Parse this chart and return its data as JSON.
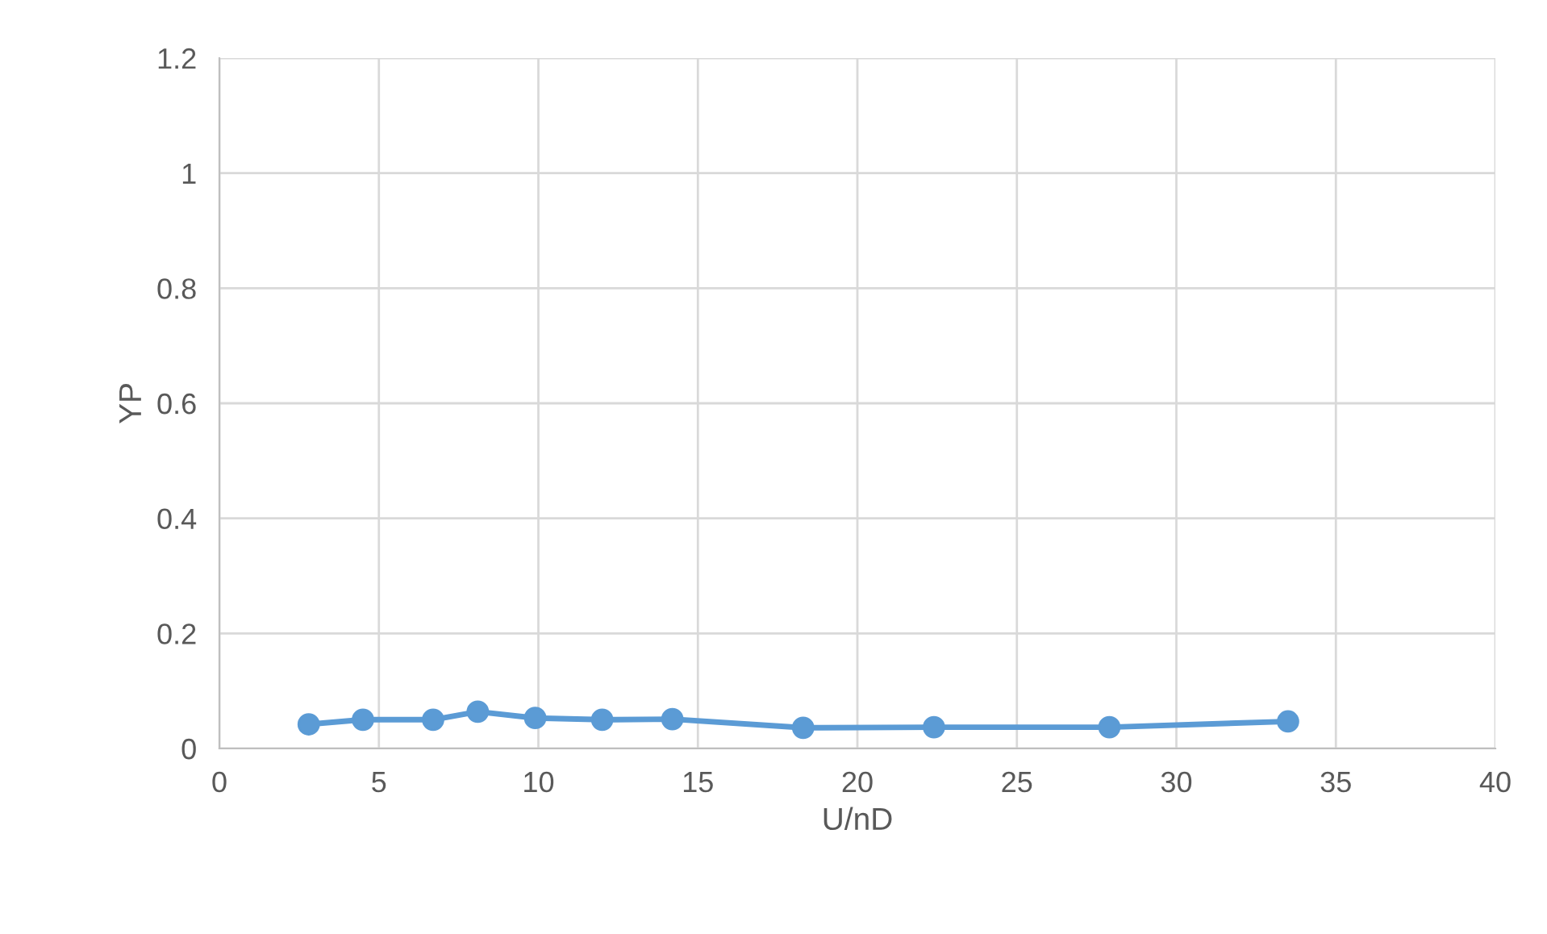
{
  "chart_data": {
    "type": "line",
    "xlabel": "U/nD",
    "ylabel": "YP",
    "x": [
      2.8,
      4.5,
      6.7,
      8.1,
      9.9,
      12.0,
      14.2,
      18.3,
      22.4,
      27.9,
      33.5
    ],
    "series": [
      {
        "color": "#5b9bd5",
        "values": [
          0.042,
          0.05,
          0.05,
          0.064,
          0.053,
          0.05,
          0.051,
          0.036,
          0.037,
          0.037,
          0.047
        ]
      }
    ],
    "xlim": [
      0,
      40
    ],
    "xticks": [
      0,
      5,
      10,
      15,
      20,
      25,
      30,
      35,
      40
    ],
    "ylim": [
      0,
      1.2
    ],
    "yticks": [
      0,
      0.2,
      0.4,
      0.6,
      0.8,
      1,
      1.2
    ],
    "grid": true,
    "marker": "circle",
    "line_style": "solid",
    "legend": false
  }
}
